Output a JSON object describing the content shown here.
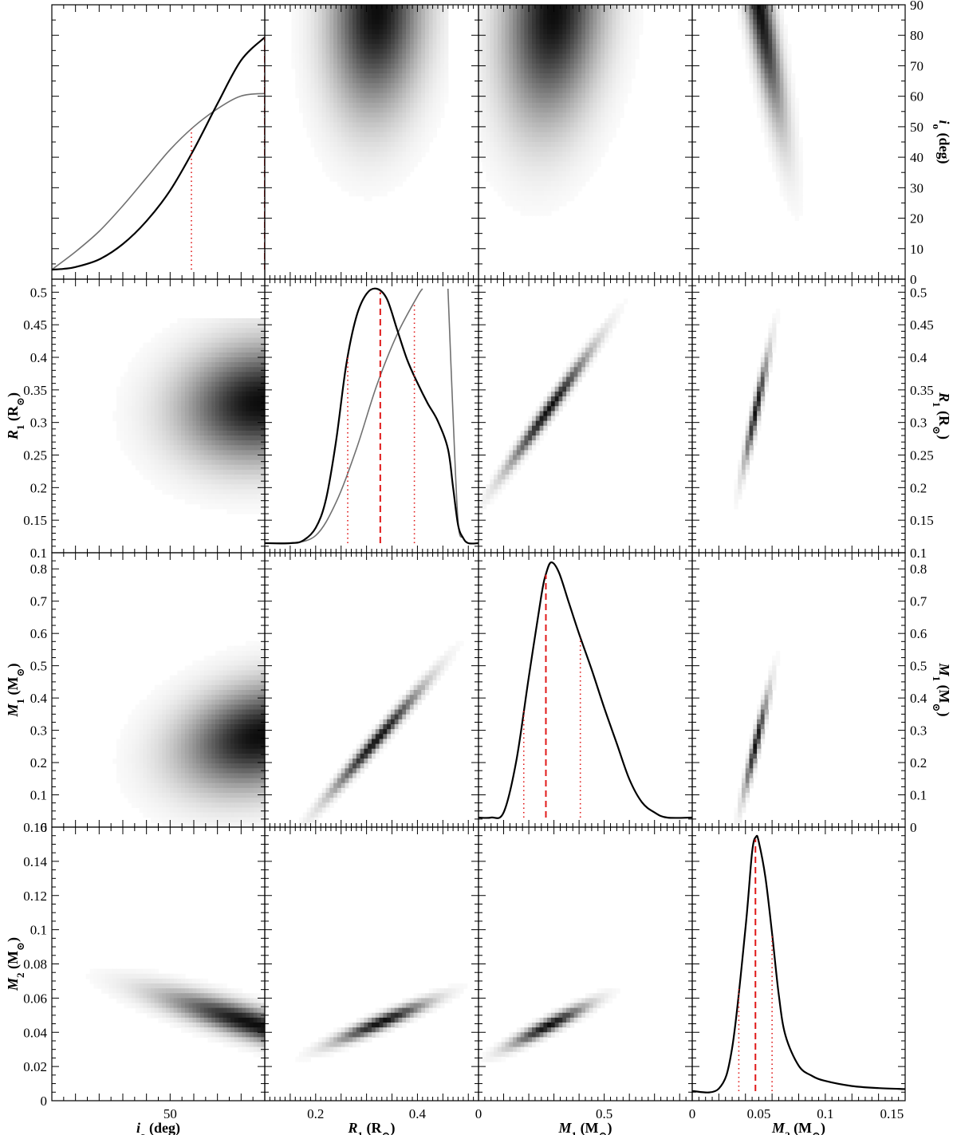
{
  "chart_data": {
    "type": "heatmap",
    "layout": "corner-plot 4x4",
    "parameters": [
      {
        "key": "i0",
        "label_main": "i",
        "label_sub": "o",
        "label_unit": " (deg)",
        "range": [
          0,
          90
        ],
        "x_ticks": [
          {
            "v": 50,
            "t": "50"
          }
        ],
        "y_ticks": [
          {
            "v": 0,
            "t": "0"
          },
          {
            "v": 10,
            "t": "10"
          },
          {
            "v": 20,
            "t": "20"
          },
          {
            "v": 30,
            "t": "30"
          },
          {
            "v": 40,
            "t": "40"
          },
          {
            "v": 50,
            "t": "50"
          },
          {
            "v": 60,
            "t": "60"
          },
          {
            "v": 70,
            "t": "70"
          },
          {
            "v": 80,
            "t": "80"
          },
          {
            "v": 90,
            "t": "90"
          }
        ]
      },
      {
        "key": "R1",
        "label_main": "R",
        "label_sub": "1",
        "label_unit": " (R",
        "label_sym": "⊙",
        "label_end": ")",
        "range": [
          0.1,
          0.52
        ],
        "x_ticks": [
          {
            "v": 0.2,
            "t": "0.2"
          },
          {
            "v": 0.4,
            "t": "0.4"
          }
        ],
        "y_ticks": [
          {
            "v": 0.1,
            "t": "0.1"
          },
          {
            "v": 0.15,
            "t": "0.15"
          },
          {
            "v": 0.2,
            "t": "0.2"
          },
          {
            "v": 0.25,
            "t": "0.25"
          },
          {
            "v": 0.3,
            "t": "0.3"
          },
          {
            "v": 0.35,
            "t": "0.35"
          },
          {
            "v": 0.4,
            "t": "0.4"
          },
          {
            "v": 0.45,
            "t": "0.45"
          },
          {
            "v": 0.5,
            "t": "0.5"
          }
        ]
      },
      {
        "key": "M1",
        "label_main": "M",
        "label_sub": "1",
        "label_unit": " (M",
        "label_sym": "⊙",
        "label_end": ")",
        "range": [
          0,
          0.85
        ],
        "x_ticks": [
          {
            "v": 0,
            "t": "0"
          },
          {
            "v": 0.5,
            "t": "0.5"
          }
        ],
        "y_ticks": [
          {
            "v": 0,
            "t": "0"
          },
          {
            "v": 0.1,
            "t": "0.1"
          },
          {
            "v": 0.2,
            "t": "0.2"
          },
          {
            "v": 0.3,
            "t": "0.3"
          },
          {
            "v": 0.4,
            "t": "0.4"
          },
          {
            "v": 0.5,
            "t": "0.5"
          },
          {
            "v": 0.6,
            "t": "0.6"
          },
          {
            "v": 0.7,
            "t": "0.7"
          },
          {
            "v": 0.8,
            "t": "0.8"
          }
        ]
      },
      {
        "key": "M2",
        "label_main": "M",
        "label_sub": "2",
        "label_unit": " (M",
        "label_sym": "⊙",
        "label_end": ")",
        "range": [
          0,
          0.16
        ],
        "x_ticks": [
          {
            "v": 0,
            "t": "0"
          },
          {
            "v": 0.05,
            "t": "0.05"
          },
          {
            "v": 0.1,
            "t": "0.1"
          },
          {
            "v": 0.15,
            "t": "0.15"
          }
        ],
        "y_ticks": [
          {
            "v": 0,
            "t": "0"
          },
          {
            "v": 0.02,
            "t": "0.02"
          },
          {
            "v": 0.04,
            "t": "0.04"
          },
          {
            "v": 0.06,
            "t": "0.06"
          },
          {
            "v": 0.08,
            "t": "0.08"
          },
          {
            "v": 0.1,
            "t": "0.1"
          },
          {
            "v": 0.12,
            "t": "0.12"
          },
          {
            "v": 0.14,
            "t": "0.14"
          },
          {
            "v": 0.16,
            "t": "0.16"
          }
        ]
      }
    ],
    "marginals": [
      {
        "param": "i0",
        "pdf": [
          [
            0,
            0.0
          ],
          [
            5,
            0.003
          ],
          [
            10,
            0.01
          ],
          [
            20,
            0.04
          ],
          [
            30,
            0.1
          ],
          [
            40,
            0.19
          ],
          [
            50,
            0.31
          ],
          [
            60,
            0.47
          ],
          [
            70,
            0.65
          ],
          [
            80,
            0.82
          ],
          [
            90,
            0.91
          ]
        ],
        "cdf": [
          [
            0,
            0.0
          ],
          [
            10,
            0.07
          ],
          [
            20,
            0.15
          ],
          [
            30,
            0.25
          ],
          [
            40,
            0.36
          ],
          [
            50,
            0.47
          ],
          [
            60,
            0.56
          ],
          [
            70,
            0.63
          ],
          [
            80,
            0.68
          ],
          [
            90,
            0.69
          ]
        ],
        "median": 90,
        "ci": [
          59,
          90
        ]
      },
      {
        "param": "R1",
        "pdf": [
          [
            0.1,
            0
          ],
          [
            0.15,
            0
          ],
          [
            0.175,
            0.01
          ],
          [
            0.2,
            0.06
          ],
          [
            0.22,
            0.17
          ],
          [
            0.24,
            0.4
          ],
          [
            0.26,
            0.7
          ],
          [
            0.28,
            0.89
          ],
          [
            0.3,
            0.98
          ],
          [
            0.32,
            1.0
          ],
          [
            0.34,
            0.96
          ],
          [
            0.36,
            0.84
          ],
          [
            0.38,
            0.72
          ],
          [
            0.4,
            0.63
          ],
          [
            0.42,
            0.55
          ],
          [
            0.44,
            0.48
          ],
          [
            0.46,
            0.37
          ],
          [
            0.47,
            0.22
          ],
          [
            0.48,
            0.07
          ],
          [
            0.49,
            0.02
          ],
          [
            0.5,
            0.0
          ],
          [
            0.52,
            0.0
          ]
        ],
        "cdf": [
          [
            0.1,
            0
          ],
          [
            0.15,
            0
          ],
          [
            0.2,
            0.03
          ],
          [
            0.24,
            0.16
          ],
          [
            0.28,
            0.37
          ],
          [
            0.32,
            0.62
          ],
          [
            0.36,
            0.82
          ],
          [
            0.4,
            0.97
          ],
          [
            0.41,
            1.0
          ]
        ],
        "cdf_tail": [
          [
            0.46,
            1.0
          ],
          [
            0.47,
            0.5
          ],
          [
            0.48,
            0.08
          ],
          [
            0.49,
            0.02
          ],
          [
            0.5,
            0.0
          ],
          [
            0.52,
            0.0
          ]
        ],
        "median": 0.327,
        "ci": [
          0.263,
          0.394
        ]
      },
      {
        "param": "M1",
        "pdf": [
          [
            0,
            0
          ],
          [
            0.05,
            0.0
          ],
          [
            0.1,
            0.02
          ],
          [
            0.15,
            0.22
          ],
          [
            0.2,
            0.55
          ],
          [
            0.25,
            0.87
          ],
          [
            0.27,
            0.96
          ],
          [
            0.29,
            1.0
          ],
          [
            0.32,
            0.96
          ],
          [
            0.36,
            0.84
          ],
          [
            0.4,
            0.72
          ],
          [
            0.45,
            0.58
          ],
          [
            0.5,
            0.43
          ],
          [
            0.55,
            0.29
          ],
          [
            0.6,
            0.15
          ],
          [
            0.65,
            0.06
          ],
          [
            0.7,
            0.02
          ],
          [
            0.75,
            0.0
          ],
          [
            0.85,
            0.0
          ]
        ],
        "median": 0.268,
        "ci": [
          0.18,
          0.405
        ]
      },
      {
        "param": "M2",
        "pdf": [
          [
            0,
            0
          ],
          [
            0.02,
            0.01
          ],
          [
            0.03,
            0.17
          ],
          [
            0.04,
            0.64
          ],
          [
            0.045,
            0.94
          ],
          [
            0.048,
            1.0
          ],
          [
            0.05,
            0.98
          ],
          [
            0.055,
            0.84
          ],
          [
            0.06,
            0.62
          ],
          [
            0.065,
            0.38
          ],
          [
            0.07,
            0.22
          ],
          [
            0.08,
            0.1
          ],
          [
            0.09,
            0.06
          ],
          [
            0.1,
            0.04
          ],
          [
            0.12,
            0.02
          ],
          [
            0.14,
            0.012
          ],
          [
            0.16,
            0.008
          ]
        ],
        "median": 0.0475,
        "ci": [
          0.035,
          0.06
        ]
      }
    ],
    "joint": [
      {
        "row": 0,
        "col": 1,
        "mx": 0.32,
        "sx": 0.06,
        "my": 88,
        "sy": 22,
        "rho": 0.1,
        "cut": 0.46
      },
      {
        "row": 0,
        "col": 2,
        "mx": 0.3,
        "sx": 0.13,
        "my": 88,
        "sy": 24,
        "rho": 0.2
      },
      {
        "row": 0,
        "col": 3,
        "mx": 0.05,
        "sx": 0.012,
        "my": 90,
        "sy": 25,
        "rho": -0.85
      },
      {
        "row": 1,
        "col": 0,
        "mx": 88,
        "sx": 22,
        "my": 0.33,
        "sy": 0.06,
        "rho": 0.1,
        "cuty": 0.46
      },
      {
        "row": 1,
        "col": 2,
        "mx": 0.28,
        "sx": 0.11,
        "my": 0.32,
        "sy": 0.06,
        "rho": 0.985
      },
      {
        "row": 1,
        "col": 3,
        "mx": 0.048,
        "sx": 0.006,
        "my": 0.32,
        "sy": 0.055,
        "rho": 0.95
      },
      {
        "row": 2,
        "col": 0,
        "mx": 88,
        "sx": 22,
        "my": 0.28,
        "sy": 0.11,
        "rho": 0.25
      },
      {
        "row": 2,
        "col": 1,
        "mx": 0.32,
        "sx": 0.06,
        "my": 0.27,
        "sy": 0.11,
        "rho": 0.985
      },
      {
        "row": 2,
        "col": 3,
        "mx": 0.048,
        "sx": 0.006,
        "my": 0.26,
        "sy": 0.1,
        "rho": 0.95
      },
      {
        "row": 3,
        "col": 0,
        "mx": 85,
        "sx": 25,
        "my": 0.045,
        "sy": 0.012,
        "rho": -0.85
      },
      {
        "row": 3,
        "col": 1,
        "mx": 0.33,
        "sx": 0.06,
        "my": 0.046,
        "sy": 0.008,
        "rho": 0.93
      },
      {
        "row": 3,
        "col": 2,
        "mx": 0.28,
        "sx": 0.1,
        "my": 0.044,
        "sy": 0.008,
        "rho": 0.93
      }
    ]
  }
}
